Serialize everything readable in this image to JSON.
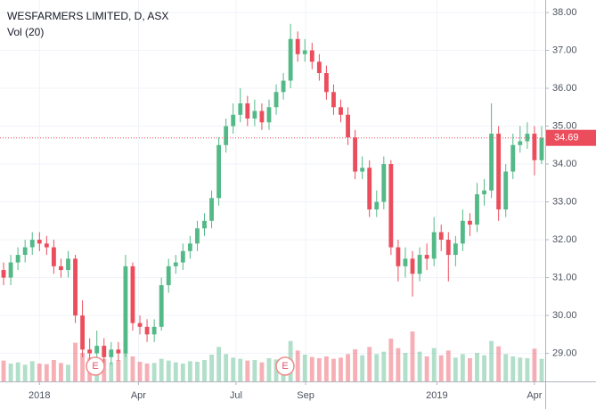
{
  "chart_data": {
    "type": "candlestick",
    "title": "WESFARMERS LIMITED, D, ASX",
    "subtitle": "Vol (20)",
    "last_price": 34.69,
    "earnings_markers": [
      "E",
      "E"
    ],
    "up_color": "#53b987",
    "down_color": "#eb4d5c",
    "ylim": [
      28.26,
      38.33
    ],
    "yticks": [
      {
        "value": 29,
        "label": "29.00"
      },
      {
        "value": 30,
        "label": "30.00"
      },
      {
        "value": 31,
        "label": "31.00"
      },
      {
        "value": 32,
        "label": "32.00"
      },
      {
        "value": 33,
        "label": "33.00"
      },
      {
        "value": 34,
        "label": "34.00"
      },
      {
        "value": 35,
        "label": "35.00"
      },
      {
        "value": 36,
        "label": "36.00"
      },
      {
        "value": 37,
        "label": "37.00"
      },
      {
        "value": 38,
        "label": "38.00"
      }
    ],
    "xlim": [
      0,
      76
    ],
    "xticks": [
      {
        "value": 5.5,
        "label": "2018"
      },
      {
        "value": 19.3,
        "label": "Apr"
      },
      {
        "value": 32.9,
        "label": "Jul"
      },
      {
        "value": 42.6,
        "label": "Sep"
      },
      {
        "value": 60.9,
        "label": "2019"
      },
      {
        "value": 74.5,
        "label": "Apr"
      }
    ],
    "vlim": [
      0,
      15
    ],
    "open": [
      31.2,
      31.0,
      31.4,
      31.6,
      31.8,
      32.0,
      31.9,
      31.8,
      31.3,
      31.2,
      31.5,
      30.0,
      29.1,
      29.0,
      29.2,
      28.9,
      29.1,
      29.0,
      31.3,
      29.8,
      29.7,
      29.5,
      29.7,
      30.8,
      31.3,
      31.4,
      31.7,
      31.9,
      32.3,
      32.5,
      33.1,
      34.5,
      35.0,
      35.3,
      35.6,
      35.2,
      35.4,
      35.1,
      35.5,
      35.9,
      36.2,
      37.3,
      36.9,
      37.0,
      36.7,
      36.4,
      35.9,
      35.5,
      35.3,
      34.7,
      33.8,
      33.9,
      32.8,
      33.0,
      34.0,
      31.8,
      31.3,
      31.5,
      31.1,
      31.6,
      31.5,
      32.2,
      32.0,
      31.6,
      31.9,
      32.5,
      32.4,
      33.2,
      33.3,
      34.8,
      32.8,
      33.8,
      34.5,
      34.6,
      34.8,
      34.1
    ],
    "high": [
      31.4,
      31.6,
      31.8,
      32.0,
      32.2,
      32.2,
      32.1,
      32.0,
      31.5,
      31.7,
      31.6,
      30.4,
      29.4,
      29.6,
      29.4,
      29.3,
      29.3,
      31.6,
      31.4,
      30.0,
      29.9,
      29.9,
      31.0,
      31.5,
      31.6,
      31.9,
      32.1,
      32.5,
      32.7,
      33.3,
      34.7,
      35.2,
      35.6,
      36.0,
      35.8,
      35.7,
      35.6,
      35.7,
      36.1,
      36.4,
      37.7,
      37.5,
      37.3,
      37.2,
      36.9,
      36.6,
      36.1,
      35.7,
      35.5,
      34.9,
      34.2,
      34.1,
      33.3,
      34.2,
      34.1,
      32.0,
      31.8,
      31.7,
      31.8,
      31.9,
      32.6,
      32.4,
      32.2,
      32.1,
      32.8,
      32.7,
      33.5,
      33.6,
      35.6,
      35.0,
      34.0,
      34.8,
      35.0,
      35.1,
      35.0,
      35.0
    ],
    "low": [
      30.8,
      30.8,
      31.2,
      31.4,
      31.6,
      31.7,
      31.6,
      31.1,
      31.0,
      31.0,
      29.8,
      28.9,
      28.8,
      28.8,
      28.7,
      28.7,
      28.8,
      28.9,
      29.6,
      29.5,
      29.3,
      29.3,
      29.6,
      30.6,
      31.1,
      31.2,
      31.5,
      31.7,
      32.1,
      32.3,
      32.9,
      34.3,
      34.8,
      35.1,
      35.0,
      35.0,
      34.9,
      34.9,
      35.3,
      35.7,
      36.0,
      36.7,
      36.7,
      36.5,
      36.2,
      35.7,
      35.3,
      35.1,
      34.5,
      33.6,
      33.6,
      32.6,
      32.6,
      32.8,
      31.6,
      30.9,
      31.0,
      30.5,
      30.9,
      31.2,
      31.3,
      31.7,
      30.9,
      31.3,
      31.7,
      32.1,
      32.2,
      32.9,
      33.1,
      32.5,
      32.6,
      33.6,
      34.3,
      34.4,
      33.7,
      34.0
    ],
    "close": [
      31.0,
      31.4,
      31.6,
      31.8,
      32.0,
      31.9,
      31.8,
      31.3,
      31.2,
      31.5,
      30.0,
      29.1,
      29.0,
      29.2,
      28.9,
      29.1,
      29.0,
      31.3,
      29.8,
      29.7,
      29.5,
      29.7,
      30.8,
      31.3,
      31.4,
      31.7,
      31.9,
      32.3,
      32.5,
      33.1,
      34.5,
      35.0,
      35.3,
      35.6,
      35.2,
      35.4,
      35.1,
      35.5,
      35.9,
      36.2,
      37.3,
      36.9,
      37.0,
      36.7,
      36.4,
      35.9,
      35.5,
      35.3,
      34.7,
      33.8,
      33.9,
      32.8,
      33.0,
      34.0,
      31.8,
      31.3,
      31.5,
      31.1,
      31.6,
      31.5,
      32.2,
      32.0,
      31.6,
      31.9,
      32.5,
      32.4,
      33.2,
      33.3,
      34.8,
      32.8,
      33.8,
      34.5,
      34.6,
      34.8,
      34.1,
      34.69
    ],
    "volume": [
      3.5,
      3.0,
      3.2,
      2.8,
      3.4,
      3.0,
      2.9,
      3.6,
      3.1,
      2.8,
      6.5,
      4.8,
      4.0,
      3.5,
      3.8,
      3.2,
      3.6,
      5.5,
      4.2,
      3.3,
      3.0,
      3.1,
      3.8,
      3.5,
      3.2,
      3.0,
      3.4,
      3.3,
      3.6,
      4.5,
      5.8,
      4.6,
      4.0,
      3.8,
      3.5,
      3.6,
      3.2,
      3.9,
      3.7,
      4.0,
      6.8,
      5.2,
      4.5,
      4.1,
      3.9,
      4.2,
      3.8,
      4.0,
      4.6,
      5.4,
      4.4,
      5.8,
      4.6,
      5.0,
      7.2,
      5.6,
      4.8,
      8.4,
      5.0,
      4.2,
      5.6,
      4.4,
      5.2,
      4.0,
      4.6,
      3.9,
      4.8,
      4.4,
      6.8,
      5.9,
      4.6,
      4.2,
      4.0,
      3.9,
      5.5,
      3.8
    ]
  }
}
